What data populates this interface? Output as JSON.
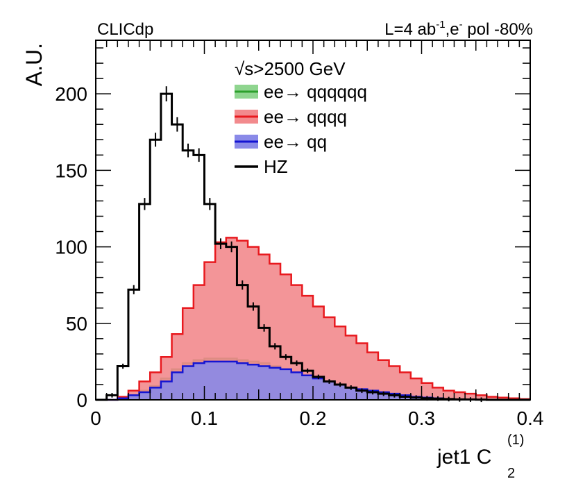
{
  "chart_data": {
    "type": "histogram",
    "header_left": "CLICdp",
    "header_right": {
      "lumi_prefix": "L=4 ab",
      "lumi_exp": "-1",
      "sep": ",e",
      "beam_exp": "-",
      "pol_text": " pol -80%"
    },
    "ylabel": "A.U.",
    "xlabel": {
      "main": "jet1 C",
      "sub": "2",
      "sup": "(1)"
    },
    "xlim": [
      0,
      0.4
    ],
    "ylim": [
      0,
      235
    ],
    "x_ticks": [
      0,
      0.1,
      0.2,
      0.3,
      0.4
    ],
    "x_tick_labels": [
      "0",
      "0.1",
      "0.2",
      "0.3",
      "0.4"
    ],
    "y_ticks": [
      0,
      50,
      100,
      150,
      200
    ],
    "y_tick_labels": [
      "0",
      "50",
      "100",
      "150",
      "200"
    ],
    "bin_edges": [
      0,
      0.01,
      0.02,
      0.03,
      0.04,
      0.05,
      0.06,
      0.07,
      0.08,
      0.09,
      0.1,
      0.11,
      0.12,
      0.13,
      0.14,
      0.15,
      0.16,
      0.17,
      0.18,
      0.19,
      0.2,
      0.21,
      0.22,
      0.23,
      0.24,
      0.25,
      0.26,
      0.27,
      0.28,
      0.29,
      0.3,
      0.31,
      0.32,
      0.33,
      0.34,
      0.35,
      0.36,
      0.37,
      0.38,
      0.39,
      0.4
    ],
    "legend_title": "√s>2500 GeV",
    "series": [
      {
        "name": "ee→ qqqqqq",
        "style": "stacked-fill",
        "color": "#2ca02c",
        "fill": "#8fd58f",
        "values": [
          0,
          0,
          1,
          3,
          6,
          9,
          14,
          20,
          24,
          26,
          27,
          27,
          27,
          26,
          25,
          24,
          22,
          20,
          18,
          16,
          14,
          12,
          10,
          8,
          6,
          5,
          4,
          3,
          2.5,
          2,
          1.5,
          1,
          0.8,
          0.5,
          0.3,
          0.2,
          0.1,
          0,
          0,
          0
        ]
      },
      {
        "name": "ee→ qqqq",
        "style": "stacked-fill",
        "color": "#e8191e",
        "fill": "#f28a8d",
        "values": [
          0,
          0,
          2,
          6,
          12,
          18,
          28,
          43,
          60,
          75,
          90,
          103,
          106,
          104,
          100,
          95,
          89,
          82,
          75,
          68,
          61,
          54,
          48,
          42,
          37,
          31,
          26,
          22,
          18,
          14,
          11,
          8,
          6,
          5,
          4,
          3,
          2,
          1.5,
          1,
          0.5
        ]
      },
      {
        "name": "ee→ qq",
        "style": "stacked-fill",
        "color": "#1414d2",
        "fill": "#8a8ae8",
        "values": [
          0,
          0,
          1,
          3,
          5,
          8,
          12,
          18,
          22,
          24,
          25,
          25,
          25,
          24,
          23,
          22,
          21,
          20,
          18,
          16,
          14,
          12,
          10,
          8,
          7,
          6,
          5,
          4,
          3,
          2,
          1.5,
          1,
          0.5,
          0.3,
          0.2,
          0.1,
          0,
          0,
          0,
          0
        ]
      },
      {
        "name": "HZ",
        "style": "step-line-errorbars",
        "color": "#000000",
        "values": [
          0,
          3,
          22,
          72,
          128,
          170,
          200,
          180,
          163,
          160,
          128,
          102,
          100,
          75,
          61,
          47,
          35,
          28,
          24,
          19,
          15,
          12,
          10,
          8,
          6,
          5,
          4,
          3,
          2,
          1.5,
          1,
          0.8,
          0.5,
          0.3,
          0.2,
          0.1,
          0,
          0,
          0,
          0
        ]
      }
    ]
  }
}
